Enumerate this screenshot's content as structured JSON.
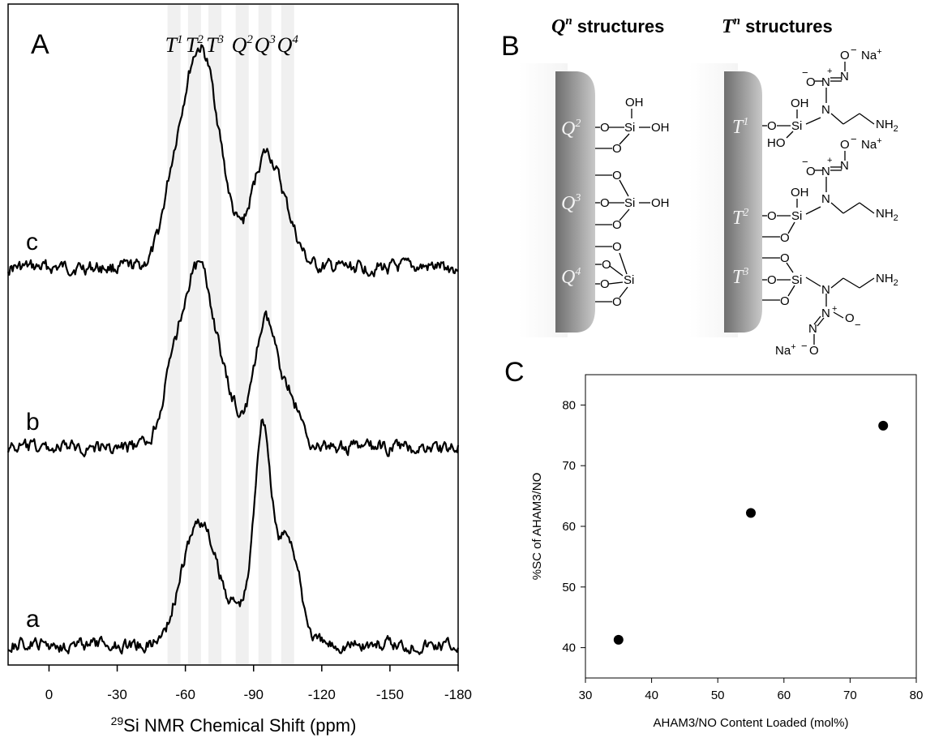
{
  "panels": {
    "a": {
      "letter": "A"
    },
    "b": {
      "letter": "B"
    },
    "c": {
      "letter": "C"
    }
  },
  "nmr": {
    "xlabel_prefix": "29",
    "xlabel": "Si NMR Chemical Shift (ppm)",
    "xlim": [
      18,
      -180
    ],
    "xticks": [
      0,
      -30,
      -60,
      -90,
      -120,
      -150,
      -180
    ],
    "xtick_labels": [
      "0",
      "-30",
      "-60",
      "-90",
      "-120",
      "-150",
      "-180"
    ],
    "bands": [
      {
        "center": -55,
        "sup": "1",
        "letter": "T"
      },
      {
        "center": -64,
        "sup": "2",
        "letter": "T"
      },
      {
        "center": -73,
        "sup": "3",
        "letter": "T"
      },
      {
        "center": -85,
        "sup": "2",
        "letter": "Q"
      },
      {
        "center": -95,
        "sup": "3",
        "letter": "Q"
      },
      {
        "center": -105,
        "sup": "4",
        "letter": "Q"
      }
    ],
    "band_color": "#f0f0f0",
    "traces": [
      {
        "label": "c",
        "base_y": 330,
        "peaks": [
          {
            "center": -53,
            "height": 30,
            "width": 4
          },
          {
            "center": -64,
            "height": 215,
            "width": 8
          },
          {
            "center": -72,
            "height": 90,
            "width": 7
          },
          {
            "center": -95,
            "height": 135,
            "width": 6
          },
          {
            "center": -105,
            "height": 40,
            "width": 5
          }
        ]
      },
      {
        "label": "b",
        "base_y": 552,
        "peaks": [
          {
            "center": -54,
            "height": 70,
            "width": 5
          },
          {
            "center": -64,
            "height": 160,
            "width": 6
          },
          {
            "center": -72,
            "height": 100,
            "width": 7
          },
          {
            "center": -85,
            "height": 15,
            "width": 5
          },
          {
            "center": -95,
            "height": 145,
            "width": 4.5
          },
          {
            "center": -105,
            "height": 65,
            "width": 5
          }
        ]
      },
      {
        "label": "a",
        "base_y": 795,
        "peaks": [
          {
            "center": -57,
            "height": 25,
            "width": 5
          },
          {
            "center": -65,
            "height": 115,
            "width": 6
          },
          {
            "center": -72,
            "height": 55,
            "width": 6
          },
          {
            "center": -85,
            "height": 40,
            "width": 6
          },
          {
            "center": -94,
            "height": 255,
            "width": 3.5
          },
          {
            "center": -105,
            "height": 135,
            "width": 5
          }
        ]
      }
    ]
  },
  "structures": {
    "q_title": "Q",
    "q_title_sup": "n",
    "q_title_rest": " structures",
    "t_title": "T",
    "t_title_sup": "n",
    "t_title_rest": " structures",
    "q_labels": [
      {
        "letter": "Q",
        "sup": "2"
      },
      {
        "letter": "Q",
        "sup": "3"
      },
      {
        "letter": "Q",
        "sup": "4"
      }
    ],
    "t_labels": [
      {
        "letter": "T",
        "sup": "1"
      },
      {
        "letter": "T",
        "sup": "2"
      },
      {
        "letter": "T",
        "sup": "3"
      }
    ],
    "atoms": {
      "si": "Si",
      "o": "O",
      "oh": "OH",
      "ho": "HO",
      "n": "N",
      "nh2": "NH",
      "nh2_sub": "2",
      "na": "Na",
      "plus": "+",
      "minus": "−"
    }
  },
  "chart_data": {
    "type": "scatter",
    "title": "",
    "xlabel": "AHAM3/NO Content Loaded (mol%)",
    "ylabel": "%SC of AHAM3/NO",
    "x": [
      35,
      55,
      75
    ],
    "y": [
      41.3,
      62.2,
      76.6
    ],
    "xlim": [
      30,
      80
    ],
    "ylim": [
      35,
      85
    ],
    "xticks": [
      30,
      40,
      50,
      60,
      70,
      80
    ],
    "yticks": [
      40,
      50,
      60,
      70,
      80
    ],
    "grid": false,
    "marker_color": "#000000"
  }
}
